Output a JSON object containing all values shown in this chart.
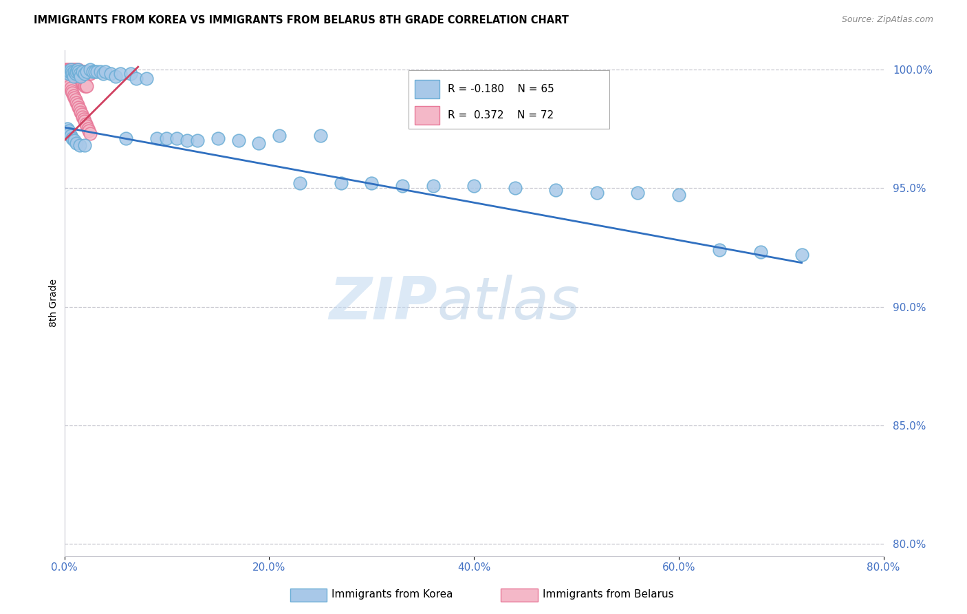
{
  "title": "IMMIGRANTS FROM KOREA VS IMMIGRANTS FROM BELARUS 8TH GRADE CORRELATION CHART",
  "source": "Source: ZipAtlas.com",
  "ylabel": "8th Grade",
  "xlim": [
    0.0,
    0.8
  ],
  "ylim": [
    0.795,
    1.008
  ],
  "xtick_labels": [
    "0.0%",
    "20.0%",
    "40.0%",
    "60.0%",
    "80.0%"
  ],
  "xtick_vals": [
    0.0,
    0.2,
    0.4,
    0.6,
    0.8
  ],
  "ytick_labels": [
    "100.0%",
    "95.0%",
    "90.0%",
    "85.0%",
    "80.0%"
  ],
  "ytick_vals": [
    1.0,
    0.95,
    0.9,
    0.85,
    0.8
  ],
  "korea_color": "#a8c8e8",
  "korea_edge": "#6baed6",
  "belarus_color": "#f4b8c8",
  "belarus_edge": "#e87898",
  "korea_R": -0.18,
  "korea_N": 65,
  "belarus_R": 0.372,
  "belarus_N": 72,
  "trend_korea_color": "#3070c0",
  "trend_belarus_color": "#d04060",
  "legend_korea_label": "Immigrants from Korea",
  "legend_belarus_label": "Immigrants from Belarus",
  "watermark_zip": "ZIP",
  "watermark_atlas": "atlas",
  "tick_color": "#4472c4",
  "grid_color": "#c8c8d0",
  "korea_x": [
    0.003,
    0.004,
    0.005,
    0.006,
    0.007,
    0.008,
    0.009,
    0.01,
    0.011,
    0.012,
    0.013,
    0.014,
    0.015,
    0.016,
    0.018,
    0.02,
    0.022,
    0.025,
    0.028,
    0.03,
    0.032,
    0.035,
    0.038,
    0.04,
    0.045,
    0.05,
    0.055,
    0.06,
    0.065,
    0.07,
    0.08,
    0.09,
    0.1,
    0.11,
    0.12,
    0.13,
    0.15,
    0.17,
    0.19,
    0.21,
    0.23,
    0.25,
    0.27,
    0.3,
    0.33,
    0.36,
    0.4,
    0.44,
    0.48,
    0.52,
    0.56,
    0.6,
    0.64,
    0.68,
    0.72,
    0.002,
    0.003,
    0.004,
    0.005,
    0.006,
    0.008,
    0.01,
    0.012,
    0.015,
    0.02
  ],
  "korea_y": [
    0.999,
    0.998,
    0.999,
    1.0,
    0.999,
    0.998,
    0.997,
    0.999,
    0.998,
    0.999,
    1.0,
    0.999,
    0.998,
    0.997,
    0.999,
    0.998,
    0.999,
    1.0,
    0.999,
    0.999,
    0.999,
    0.999,
    0.998,
    0.999,
    0.998,
    0.997,
    0.998,
    0.971,
    0.998,
    0.996,
    0.996,
    0.971,
    0.971,
    0.971,
    0.97,
    0.97,
    0.971,
    0.97,
    0.969,
    0.972,
    0.952,
    0.972,
    0.952,
    0.952,
    0.951,
    0.951,
    0.951,
    0.95,
    0.949,
    0.948,
    0.948,
    0.947,
    0.924,
    0.923,
    0.922,
    0.973,
    0.975,
    0.974,
    0.973,
    0.972,
    0.971,
    0.97,
    0.969,
    0.968,
    0.968
  ],
  "belarus_x": [
    0.001,
    0.002,
    0.003,
    0.004,
    0.005,
    0.006,
    0.007,
    0.008,
    0.009,
    0.01,
    0.011,
    0.012,
    0.013,
    0.014,
    0.015,
    0.016,
    0.017,
    0.018,
    0.019,
    0.02,
    0.021,
    0.022,
    0.023,
    0.024,
    0.025,
    0.001,
    0.002,
    0.003,
    0.004,
    0.005,
    0.006,
    0.007,
    0.008,
    0.009,
    0.01,
    0.011,
    0.012,
    0.013,
    0.014,
    0.015,
    0.016,
    0.017,
    0.018,
    0.019,
    0.02,
    0.021,
    0.022,
    0.001,
    0.002,
    0.003,
    0.004,
    0.005,
    0.006,
    0.007,
    0.008,
    0.009,
    0.01,
    0.011,
    0.012,
    0.013,
    0.014,
    0.015,
    0.016,
    0.017,
    0.018,
    0.019,
    0.02,
    0.021,
    0.022,
    0.023,
    0.024,
    0.025
  ],
  "belarus_y": [
    1.0,
    1.0,
    1.0,
    1.0,
    1.0,
    1.0,
    1.0,
    1.0,
    1.0,
    1.0,
    1.0,
    1.0,
    1.0,
    1.0,
    0.999,
    0.999,
    0.999,
    0.999,
    0.999,
    0.999,
    0.999,
    0.998,
    0.998,
    0.998,
    0.998,
    0.999,
    0.999,
    0.998,
    0.998,
    0.998,
    0.998,
    0.997,
    0.997,
    0.997,
    0.997,
    0.996,
    0.996,
    0.996,
    0.995,
    0.995,
    0.995,
    0.994,
    0.994,
    0.994,
    0.993,
    0.993,
    0.993,
    0.997,
    0.996,
    0.995,
    0.994,
    0.993,
    0.992,
    0.991,
    0.99,
    0.989,
    0.988,
    0.987,
    0.986,
    0.985,
    0.984,
    0.983,
    0.982,
    0.981,
    0.98,
    0.979,
    0.978,
    0.977,
    0.976,
    0.975,
    0.974,
    0.973
  ],
  "korea_trend_x0": 0.0,
  "korea_trend_y0": 0.9755,
  "korea_trend_x1": 0.72,
  "korea_trend_y1": 0.9185,
  "belarus_trend_x0": 0.0,
  "belarus_trend_y0": 0.97,
  "belarus_trend_x1": 0.072,
  "belarus_trend_y1": 1.001
}
